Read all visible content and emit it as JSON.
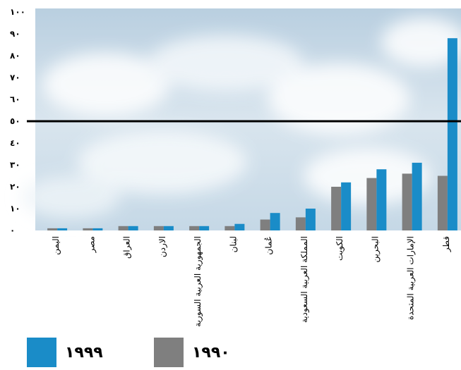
{
  "chart_data": {
    "type": "bar",
    "categories": [
      "اليمن",
      "مصر",
      "العراق",
      "الاردن",
      "الجمهورية العربية السورية",
      "لبنان",
      "عُمان",
      "المملكة العربية السعودية",
      "الكويت",
      "البحرين",
      "الإمارات العربية المتحدة",
      "قطر"
    ],
    "series": [
      {
        "name": "١٩٩٠",
        "color": "#7f7f7f",
        "values": [
          1,
          1,
          2,
          2,
          2,
          2,
          5,
          6,
          20,
          24,
          26,
          25
        ]
      },
      {
        "name": "١٩٩٩",
        "color": "#1a8cc8",
        "values": [
          1,
          1,
          2,
          2,
          2,
          3,
          8,
          10,
          22,
          28,
          31,
          88
        ]
      }
    ],
    "ylim": [
      0,
      100
    ],
    "yticks": [
      "٠",
      "١٠",
      "٢٠",
      "٣٠",
      "٤٠",
      "٥٠",
      "٦٠",
      "٧٠",
      "٨٠",
      "٩٠",
      "١٠٠"
    ],
    "reference_line": 50,
    "legend_position": "bottom-left"
  },
  "legend": [
    {
      "label": "١٩٩٩",
      "color": "#1a8cc8"
    },
    {
      "label": "١٩٩٠",
      "color": "#7f7f7f"
    }
  ]
}
